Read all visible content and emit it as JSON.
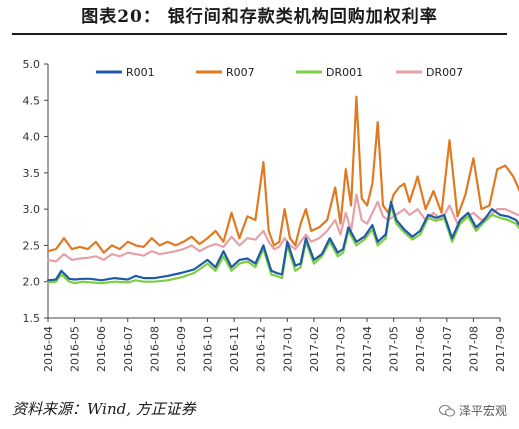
{
  "title": "图表20：   银行间和存款类机构回购加权利率",
  "source": "资料来源：Wind, 方正证券",
  "watermark": "泽平宏观",
  "colors": {
    "R001": "#1f5aa6",
    "R007": "#e07a22",
    "DR001": "#7ccf3f",
    "DR007": "#e6a0a8"
  },
  "chart_data": {
    "type": "line",
    "title": "",
    "xlabel": "",
    "ylabel": "",
    "ylim": [
      1.5,
      5.0
    ],
    "yticks": [
      "1.5",
      "2.0",
      "2.5",
      "3.0",
      "3.5",
      "4.0",
      "4.5",
      "5.0"
    ],
    "xticks": [
      "2016-04",
      "2016-05",
      "2016-06",
      "2016-07",
      "2016-08",
      "2016-09",
      "2016-10",
      "2016-11",
      "2016-12",
      "2017-01",
      "2017-02",
      "2017-03",
      "2017-04",
      "2017-05",
      "2017-06",
      "2017-07",
      "2017-08",
      "2017-09"
    ],
    "legend": "top",
    "grid": false,
    "series": [
      {
        "name": "R001",
        "x": [
          0,
          0.3,
          0.5,
          0.8,
          1.0,
          1.3,
          1.6,
          2.0,
          2.5,
          3.0,
          3.3,
          3.6,
          4.0,
          4.5,
          5.0,
          5.5,
          6.0,
          6.3,
          6.6,
          6.9,
          7.2,
          7.5,
          7.8,
          8.1,
          8.4,
          8.6,
          8.8,
          9.0,
          9.3,
          9.5,
          9.7,
          10.0,
          10.3,
          10.6,
          10.9,
          11.1,
          11.3,
          11.6,
          11.9,
          12.2,
          12.4,
          12.7,
          12.9,
          13.1,
          13.4,
          13.7,
          14.0,
          14.3,
          14.6,
          14.9,
          15.2,
          15.5,
          15.8,
          16.1,
          16.4,
          16.7,
          17.0,
          17.3,
          17.6,
          18.0
        ],
        "values": [
          2.02,
          2.03,
          2.15,
          2.04,
          2.03,
          2.04,
          2.04,
          2.02,
          2.05,
          2.03,
          2.08,
          2.05,
          2.05,
          2.08,
          2.12,
          2.17,
          2.3,
          2.2,
          2.42,
          2.2,
          2.3,
          2.32,
          2.25,
          2.5,
          2.15,
          2.12,
          2.1,
          2.55,
          2.22,
          2.25,
          2.6,
          2.3,
          2.38,
          2.6,
          2.4,
          2.45,
          2.75,
          2.55,
          2.62,
          2.78,
          2.55,
          2.65,
          3.1,
          2.85,
          2.72,
          2.62,
          2.7,
          2.92,
          2.88,
          2.92,
          2.6,
          2.85,
          2.95,
          2.75,
          2.85,
          3.0,
          2.92,
          2.9,
          2.85,
          2.65
        ]
      },
      {
        "name": "R007",
        "x": [
          0,
          0.3,
          0.6,
          0.9,
          1.2,
          1.5,
          1.8,
          2.1,
          2.4,
          2.7,
          3.0,
          3.3,
          3.6,
          3.9,
          4.2,
          4.5,
          4.8,
          5.1,
          5.4,
          5.7,
          6.0,
          6.3,
          6.6,
          6.9,
          7.2,
          7.5,
          7.8,
          8.1,
          8.3,
          8.5,
          8.7,
          8.9,
          9.1,
          9.3,
          9.5,
          9.7,
          9.9,
          10.2,
          10.5,
          10.8,
          11.0,
          11.2,
          11.4,
          11.6,
          11.8,
          12.0,
          12.2,
          12.4,
          12.6,
          12.8,
          13.0,
          13.2,
          13.4,
          13.6,
          13.9,
          14.2,
          14.5,
          14.8,
          15.1,
          15.4,
          15.7,
          16.0,
          16.3,
          16.6,
          16.9,
          17.2,
          17.5,
          17.8,
          18.0
        ],
        "values": [
          2.42,
          2.45,
          2.6,
          2.45,
          2.48,
          2.45,
          2.55,
          2.4,
          2.5,
          2.45,
          2.55,
          2.5,
          2.48,
          2.6,
          2.5,
          2.55,
          2.5,
          2.55,
          2.62,
          2.52,
          2.6,
          2.7,
          2.55,
          2.95,
          2.6,
          2.9,
          2.85,
          3.65,
          2.7,
          2.5,
          2.55,
          3.0,
          2.6,
          2.5,
          2.8,
          3.0,
          2.7,
          2.75,
          2.85,
          3.3,
          2.8,
          3.55,
          3.05,
          4.55,
          3.15,
          3.05,
          3.35,
          4.2,
          3.05,
          2.95,
          3.2,
          3.3,
          3.35,
          3.1,
          3.45,
          3.0,
          3.25,
          2.95,
          3.95,
          2.9,
          3.2,
          3.7,
          3.0,
          3.05,
          3.55,
          3.6,
          3.45,
          3.2,
          3.15
        ]
      },
      {
        "name": "DR001",
        "x": [
          0,
          0.3,
          0.5,
          0.8,
          1.0,
          1.3,
          1.6,
          2.0,
          2.5,
          3.0,
          3.3,
          3.6,
          4.0,
          4.5,
          5.0,
          5.5,
          6.0,
          6.3,
          6.6,
          6.9,
          7.2,
          7.5,
          7.8,
          8.1,
          8.4,
          8.6,
          8.8,
          9.0,
          9.3,
          9.5,
          9.7,
          10.0,
          10.3,
          10.6,
          10.9,
          11.1,
          11.3,
          11.6,
          11.9,
          12.2,
          12.4,
          12.7,
          12.9,
          13.1,
          13.4,
          13.7,
          14.0,
          14.3,
          14.6,
          14.9,
          15.2,
          15.5,
          15.8,
          16.1,
          16.4,
          16.7,
          17.0,
          17.3,
          17.6,
          18.0
        ],
        "values": [
          1.99,
          2.0,
          2.1,
          2.0,
          1.98,
          2.0,
          1.99,
          1.98,
          2.0,
          1.99,
          2.02,
          2.0,
          2.0,
          2.02,
          2.06,
          2.12,
          2.25,
          2.15,
          2.35,
          2.15,
          2.25,
          2.28,
          2.2,
          2.45,
          2.1,
          2.08,
          2.05,
          2.5,
          2.15,
          2.2,
          2.55,
          2.25,
          2.35,
          2.55,
          2.35,
          2.4,
          2.7,
          2.5,
          2.58,
          2.72,
          2.5,
          2.6,
          3.05,
          2.8,
          2.68,
          2.58,
          2.65,
          2.88,
          2.84,
          2.88,
          2.55,
          2.8,
          2.9,
          2.7,
          2.82,
          2.92,
          2.88,
          2.85,
          2.8,
          2.6
        ]
      },
      {
        "name": "DR007",
        "x": [
          0,
          0.3,
          0.6,
          0.9,
          1.2,
          1.5,
          1.8,
          2.1,
          2.4,
          2.7,
          3.0,
          3.3,
          3.6,
          3.9,
          4.2,
          4.5,
          4.8,
          5.1,
          5.4,
          5.7,
          6.0,
          6.3,
          6.6,
          6.9,
          7.2,
          7.5,
          7.8,
          8.1,
          8.3,
          8.5,
          8.7,
          8.9,
          9.1,
          9.3,
          9.5,
          9.7,
          9.9,
          10.2,
          10.5,
          10.8,
          11.0,
          11.2,
          11.4,
          11.6,
          11.8,
          12.0,
          12.2,
          12.4,
          12.6,
          12.8,
          13.0,
          13.2,
          13.4,
          13.6,
          13.9,
          14.2,
          14.5,
          14.8,
          15.1,
          15.4,
          15.7,
          16.0,
          16.3,
          16.6,
          16.9,
          17.2,
          17.5,
          17.8,
          18.0
        ],
        "values": [
          2.3,
          2.28,
          2.38,
          2.3,
          2.32,
          2.33,
          2.35,
          2.3,
          2.38,
          2.35,
          2.4,
          2.38,
          2.36,
          2.42,
          2.38,
          2.4,
          2.42,
          2.45,
          2.5,
          2.42,
          2.48,
          2.52,
          2.48,
          2.62,
          2.5,
          2.6,
          2.58,
          2.7,
          2.55,
          2.45,
          2.48,
          2.6,
          2.5,
          2.45,
          2.55,
          2.65,
          2.55,
          2.6,
          2.7,
          2.85,
          2.65,
          2.95,
          2.7,
          3.2,
          2.85,
          2.8,
          2.95,
          3.1,
          2.9,
          2.85,
          2.9,
          2.95,
          3.0,
          2.92,
          3.0,
          2.85,
          2.95,
          2.85,
          3.05,
          2.8,
          2.88,
          2.95,
          2.85,
          2.9,
          3.0,
          3.0,
          2.95,
          2.9,
          2.82
        ]
      }
    ]
  }
}
